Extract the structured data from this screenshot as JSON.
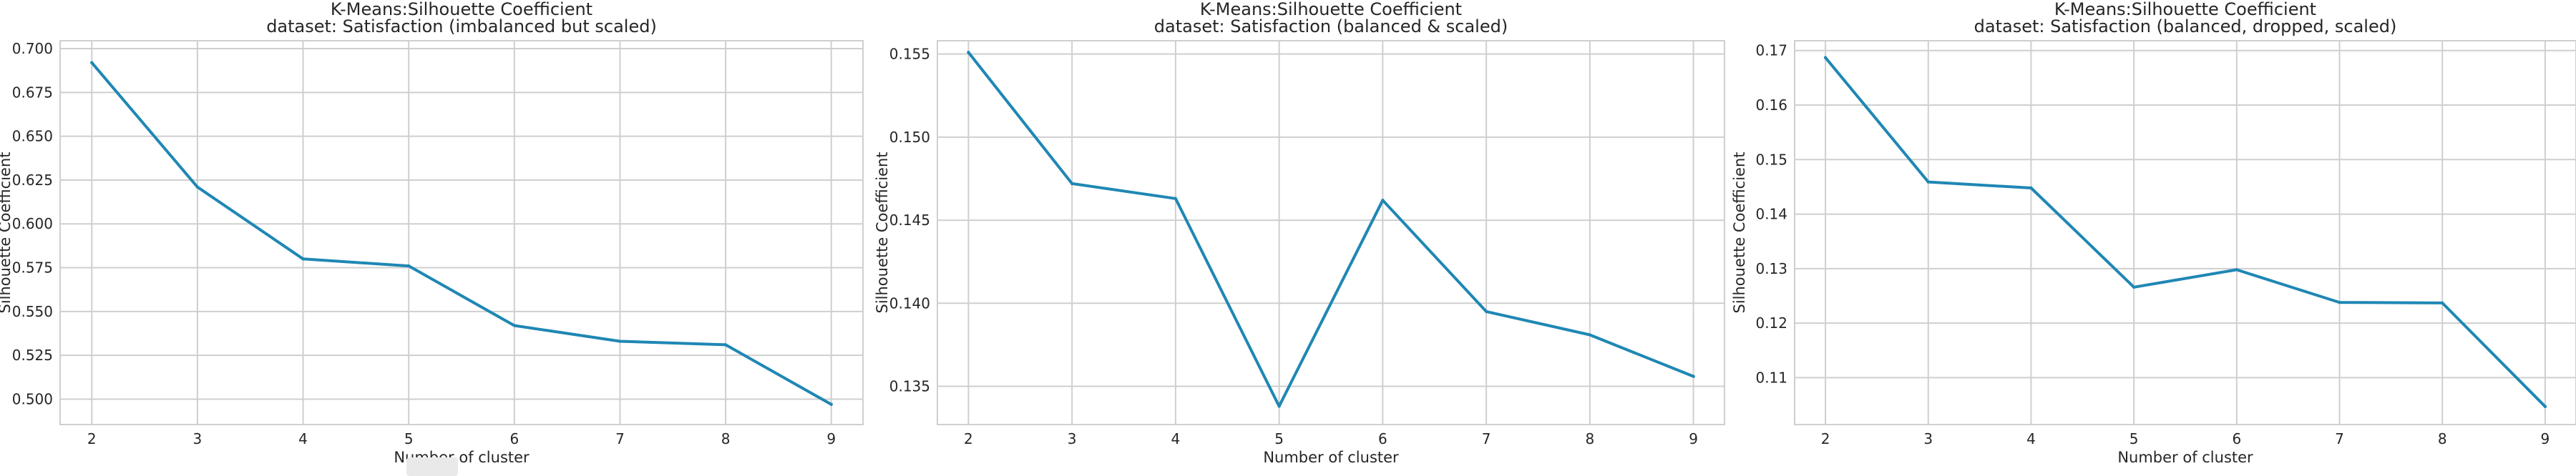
{
  "figure": {
    "background": "#ffffff",
    "plot_background": "#ffffff",
    "grid_color": "#cfcfcf",
    "spine_color": "#cfcfcf",
    "line_color": "#1f87b4",
    "text_color": "#262626"
  },
  "chart_data": [
    {
      "type": "line",
      "title": "K-Means:Silhouette Coefficient",
      "subtitle": "dataset: Satisfaction (imbalanced but scaled)",
      "xlabel": "Number of cluster",
      "ylabel": "Silhouette Coefficient",
      "x": [
        2,
        3,
        4,
        5,
        6,
        7,
        8,
        9
      ],
      "series": [
        {
          "values": [
            0.692,
            0.621,
            0.58,
            0.576,
            0.542,
            0.533,
            0.531,
            0.497
          ]
        }
      ],
      "xlim": [
        1.7,
        9.3
      ],
      "ylim": [
        0.4855,
        0.7045
      ],
      "yticks": [
        "0.500",
        "0.525",
        "0.550",
        "0.575",
        "0.600",
        "0.625",
        "0.650",
        "0.675",
        "0.700"
      ],
      "xticks": [
        "2",
        "3",
        "4",
        "5",
        "6",
        "7",
        "8",
        "9"
      ],
      "grid": true
    },
    {
      "type": "line",
      "title": "K-Means:Silhouette Coefficient",
      "subtitle": "dataset: Satisfaction (balanced & scaled)",
      "xlabel": "Number of cluster",
      "ylabel": "Silhouette Coefficient",
      "x": [
        2,
        3,
        4,
        5,
        6,
        7,
        8,
        9
      ],
      "series": [
        {
          "values": [
            0.1551,
            0.1472,
            0.1463,
            0.1338,
            0.1462,
            0.1395,
            0.1381,
            0.1356
          ]
        }
      ],
      "xlim": [
        1.7,
        9.3
      ],
      "ylim": [
        0.1327,
        0.1558
      ],
      "yticks": [
        "0.135",
        "0.140",
        "0.145",
        "0.150",
        "0.155"
      ],
      "xticks": [
        "2",
        "3",
        "4",
        "5",
        "6",
        "7",
        "8",
        "9"
      ],
      "grid": true
    },
    {
      "type": "line",
      "title": "K-Means:Silhouette Coefficient",
      "subtitle": "dataset: Satisfaction (balanced, dropped, scaled)",
      "xlabel": "Number of cluster",
      "ylabel": "Silhouette Coefficient",
      "x": [
        2,
        3,
        4,
        5,
        6,
        7,
        8,
        9
      ],
      "series": [
        {
          "values": [
            0.1687,
            0.1459,
            0.1448,
            0.1266,
            0.1298,
            0.1238,
            0.1237,
            0.1047
          ]
        }
      ],
      "xlim": [
        1.7,
        9.3
      ],
      "ylim": [
        0.1014,
        0.1718
      ],
      "yticks": [
        "0.11",
        "0.12",
        "0.13",
        "0.14",
        "0.15",
        "0.16",
        "0.17"
      ],
      "xticks": [
        "2",
        "3",
        "4",
        "5",
        "6",
        "7",
        "8",
        "9"
      ],
      "grid": true
    }
  ]
}
